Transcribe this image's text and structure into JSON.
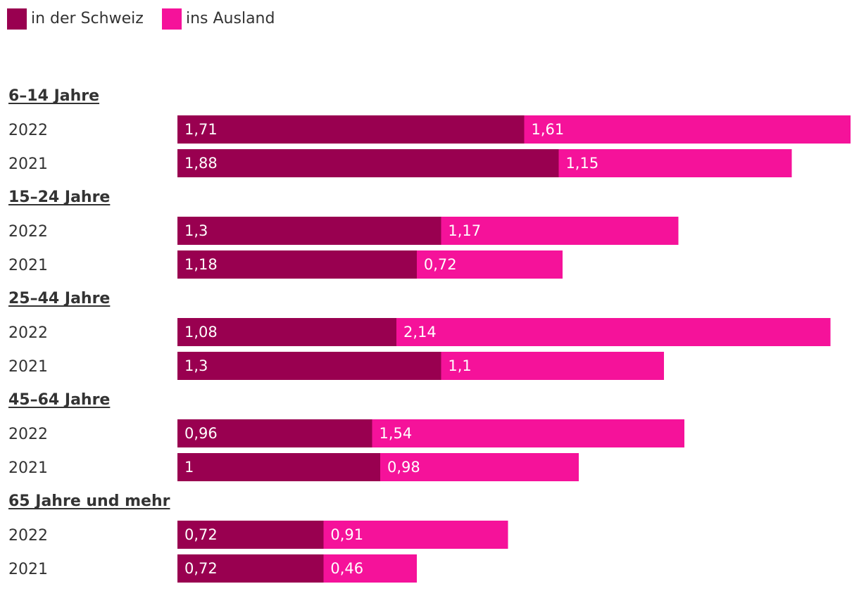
{
  "chart_data": {
    "type": "bar",
    "orientation": "horizontal",
    "stacked": true,
    "legend_position": "top-left",
    "grid": false,
    "xlim": [
      0,
      3.32
    ],
    "colors": {
      "in_der_schweiz": "#990050",
      "ins_ausland": "#f5129a"
    },
    "legend": [
      {
        "key": "in_der_schweiz",
        "label": "in der Schweiz"
      },
      {
        "key": "ins_ausland",
        "label": "ins Ausland"
      }
    ],
    "groups": [
      {
        "label": "6–14 Jahre",
        "rows": [
          {
            "year": "2022",
            "in_der_schweiz": 1.71,
            "in_der_schweiz_label": "1,71",
            "ins_ausland": 1.61,
            "ins_ausland_label": "1,61"
          },
          {
            "year": "2021",
            "in_der_schweiz": 1.88,
            "in_der_schweiz_label": "1,88",
            "ins_ausland": 1.15,
            "ins_ausland_label": "1,15"
          }
        ]
      },
      {
        "label": "15–24 Jahre",
        "rows": [
          {
            "year": "2022",
            "in_der_schweiz": 1.3,
            "in_der_schweiz_label": "1,3",
            "ins_ausland": 1.17,
            "ins_ausland_label": "1,17"
          },
          {
            "year": "2021",
            "in_der_schweiz": 1.18,
            "in_der_schweiz_label": "1,18",
            "ins_ausland": 0.72,
            "ins_ausland_label": "0,72"
          }
        ]
      },
      {
        "label": "25–44 Jahre",
        "rows": [
          {
            "year": "2022",
            "in_der_schweiz": 1.08,
            "in_der_schweiz_label": "1,08",
            "ins_ausland": 2.14,
            "ins_ausland_label": "2,14"
          },
          {
            "year": "2021",
            "in_der_schweiz": 1.3,
            "in_der_schweiz_label": "1,3",
            "ins_ausland": 1.1,
            "ins_ausland_label": "1,1"
          }
        ]
      },
      {
        "label": "45–64 Jahre",
        "rows": [
          {
            "year": "2022",
            "in_der_schweiz": 0.96,
            "in_der_schweiz_label": "0,96",
            "ins_ausland": 1.54,
            "ins_ausland_label": "1,54"
          },
          {
            "year": "2021",
            "in_der_schweiz": 1.0,
            "in_der_schweiz_label": "1",
            "ins_ausland": 0.98,
            "ins_ausland_label": "0,98"
          }
        ]
      },
      {
        "label": "65 Jahre und mehr",
        "rows": [
          {
            "year": "2022",
            "in_der_schweiz": 0.72,
            "in_der_schweiz_label": "0,72",
            "ins_ausland": 0.91,
            "ins_ausland_label": "0,91"
          },
          {
            "year": "2021",
            "in_der_schweiz": 0.72,
            "in_der_schweiz_label": "0,72",
            "ins_ausland": 0.46,
            "ins_ausland_label": "0,46"
          }
        ]
      }
    ]
  }
}
